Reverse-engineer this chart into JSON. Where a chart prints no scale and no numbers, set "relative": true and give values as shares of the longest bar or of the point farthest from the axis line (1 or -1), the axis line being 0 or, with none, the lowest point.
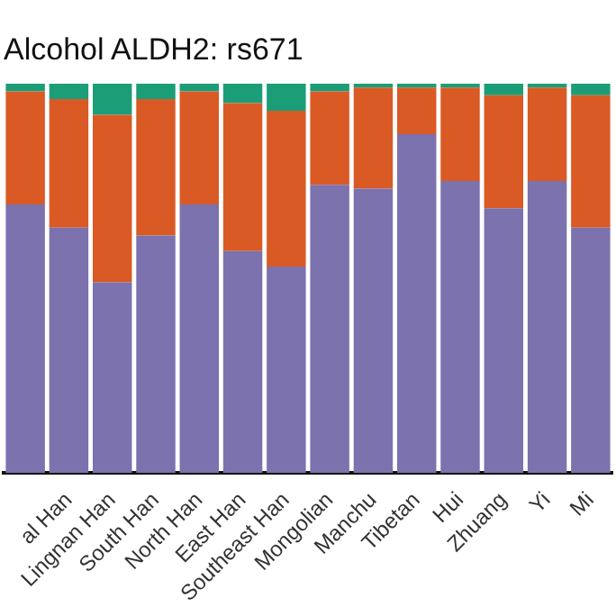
{
  "chart_data": {
    "type": "bar",
    "title": "Alcohol ALDH2: rs671",
    "stacked": true,
    "relative": true,
    "legend": false,
    "grid": false,
    "categories": [
      null,
      "al Han",
      "Lingnan Han",
      "South Han",
      "North Han",
      "East Han",
      "Southeast Han",
      "Mongolian",
      "Manchu",
      "Tibetan",
      "Hui",
      "Zhuang",
      "Yi",
      "Mi"
    ],
    "series": [
      {
        "color": "#7b72ae",
        "values": [
          0.69,
          0.63,
          0.49,
          0.61,
          0.69,
          0.57,
          0.53,
          0.74,
          0.73,
          0.87,
          0.75,
          0.68,
          0.75,
          0.63
        ]
      },
      {
        "color": "#d95a25",
        "values": [
          0.29,
          0.33,
          0.43,
          0.35,
          0.29,
          0.38,
          0.4,
          0.24,
          0.26,
          0.12,
          0.24,
          0.29,
          0.24,
          0.34
        ]
      },
      {
        "color": "#1b9e77",
        "values": [
          0.02,
          0.04,
          0.08,
          0.04,
          0.02,
          0.05,
          0.07,
          0.02,
          0.01,
          0.01,
          0.01,
          0.03,
          0.01,
          0.03
        ]
      }
    ]
  }
}
